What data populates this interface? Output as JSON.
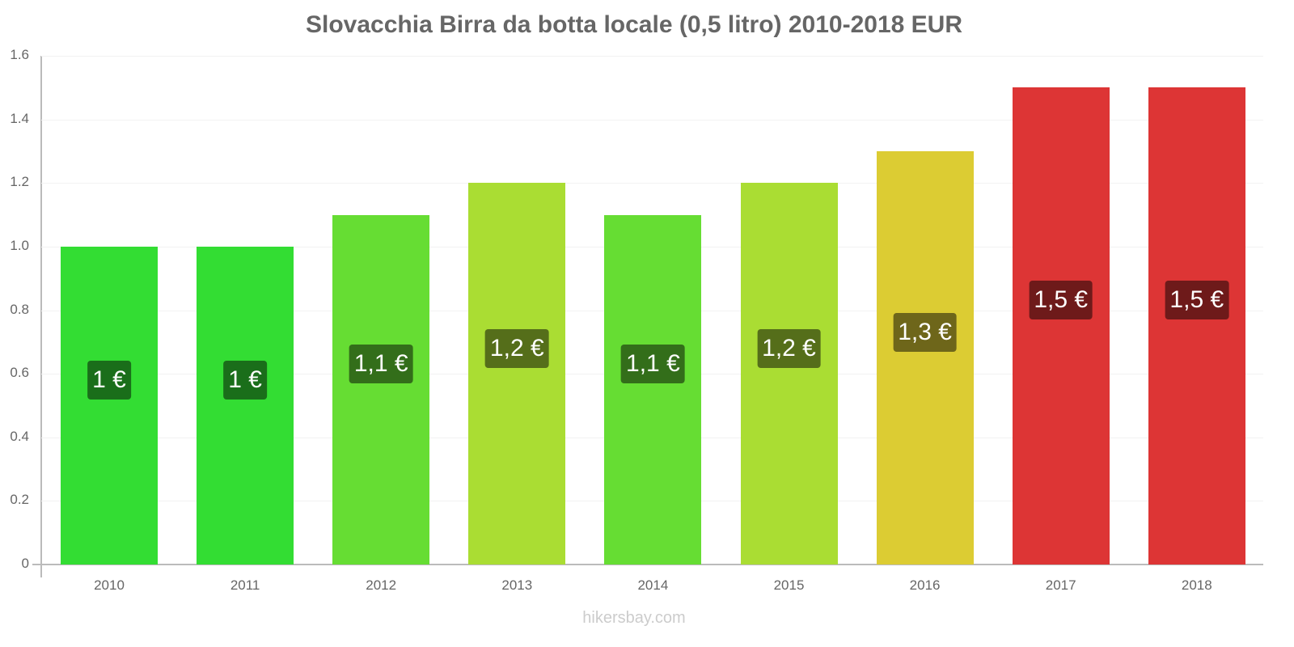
{
  "title": "Slovacchia Birra da botta locale (0,5 litro) 2010-2018 EUR",
  "watermark": "hikersbay.com",
  "y_ticks": [
    "0",
    "0.2",
    "0.4",
    "0.6",
    "0.8",
    "1.0",
    "1.2",
    "1.4",
    "1.6"
  ],
  "bars": [
    {
      "year": "2010",
      "value": 1.0,
      "label": "1 €",
      "color": "#33dd33",
      "label_bg": "#1a6e1a"
    },
    {
      "year": "2011",
      "value": 1.0,
      "label": "1 €",
      "color": "#33dd33",
      "label_bg": "#1a6e1a"
    },
    {
      "year": "2012",
      "value": 1.1,
      "label": "1,1 €",
      "color": "#66dd33",
      "label_bg": "#336e1a"
    },
    {
      "year": "2013",
      "value": 1.2,
      "label": "1,2 €",
      "color": "#aadd33",
      "label_bg": "#556e1a"
    },
    {
      "year": "2014",
      "value": 1.1,
      "label": "1,1 €",
      "color": "#66dd33",
      "label_bg": "#336e1a"
    },
    {
      "year": "2015",
      "value": 1.2,
      "label": "1,2 €",
      "color": "#aadd33",
      "label_bg": "#556e1a"
    },
    {
      "year": "2016",
      "value": 1.3,
      "label": "1,3 €",
      "color": "#dccc33",
      "label_bg": "#6e661a"
    },
    {
      "year": "2017",
      "value": 1.5,
      "label": "1,5 €",
      "color": "#dd3535",
      "label_bg": "#6e1a1a"
    },
    {
      "year": "2018",
      "value": 1.5,
      "label": "1,5 €",
      "color": "#dd3535",
      "label_bg": "#6e1a1a"
    }
  ],
  "chart_data": {
    "type": "bar",
    "title": "Slovacchia Birra da botta locale (0,5 litro) 2010-2018 EUR",
    "categories": [
      "2010",
      "2011",
      "2012",
      "2013",
      "2014",
      "2015",
      "2016",
      "2017",
      "2018"
    ],
    "values": [
      1.0,
      1.0,
      1.1,
      1.2,
      1.1,
      1.2,
      1.3,
      1.5,
      1.5
    ],
    "data_labels": [
      "1 €",
      "1 €",
      "1,1 €",
      "1,2 €",
      "1,1 €",
      "1,2 €",
      "1,3 €",
      "1,5 €",
      "1,5 €"
    ],
    "xlabel": "",
    "ylabel": "",
    "ylim": [
      0,
      1.6
    ],
    "yticks": [
      0,
      0.2,
      0.4,
      0.6,
      0.8,
      1.0,
      1.2,
      1.4,
      1.6
    ],
    "grid": true,
    "legend": "none",
    "unit": "EUR"
  }
}
